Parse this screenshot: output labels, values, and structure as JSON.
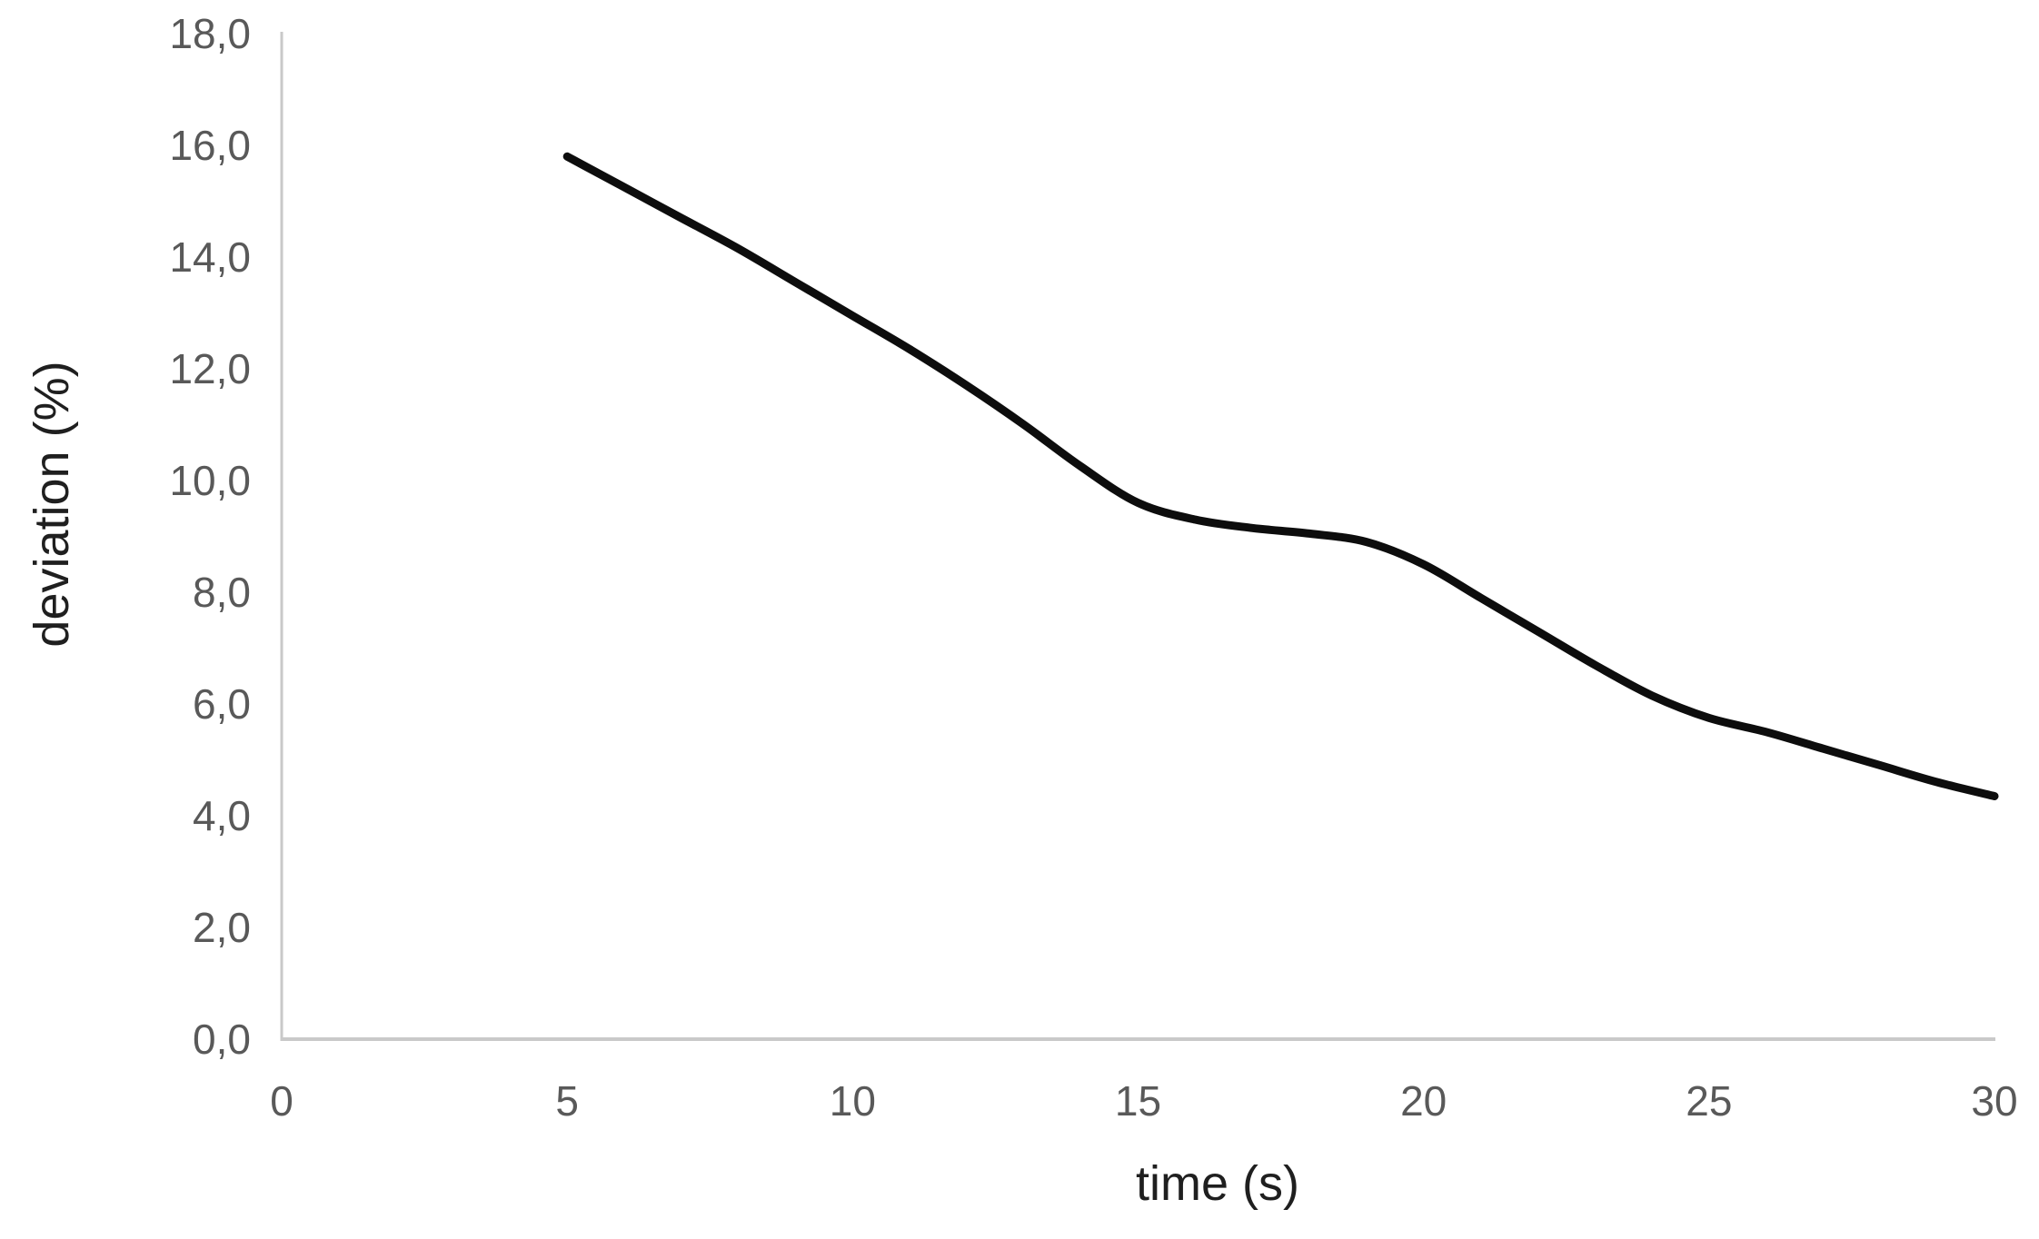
{
  "chart_data": {
    "type": "line",
    "title": "",
    "xlabel": "time (s)",
    "ylabel": "deviation (%)",
    "xlim": [
      0,
      30
    ],
    "ylim": [
      0,
      18
    ],
    "x_tick_values": [
      0,
      5,
      10,
      15,
      20,
      25,
      30
    ],
    "x_tick_labels": [
      "0",
      "5",
      "10",
      "15",
      "20",
      "25",
      "30"
    ],
    "y_tick_values": [
      0,
      2,
      4,
      6,
      8,
      10,
      12,
      14,
      16,
      18
    ],
    "y_tick_labels": [
      "0,0",
      "2,0",
      "4,0",
      "6,0",
      "8,0",
      "10,0",
      "12,0",
      "14,0",
      "16,0",
      "18,0"
    ],
    "grid": false,
    "legend": null,
    "decimal_separator": ",",
    "colors": {
      "series": "#0d0d0d",
      "axis_line": "#c9c9c9",
      "tick_label": "#595959",
      "axis_title": "#1f1f1f",
      "background": "#ffffff"
    },
    "series": [
      {
        "name": "deviation",
        "x": [
          5,
          6,
          7,
          8,
          9,
          10,
          11,
          12,
          13,
          14,
          15,
          16,
          17,
          18,
          19,
          20,
          21,
          22,
          23,
          24,
          25,
          26,
          27,
          28,
          29,
          30
        ],
        "y": [
          15.8,
          15.25,
          14.7,
          14.15,
          13.55,
          12.95,
          12.35,
          11.7,
          11.0,
          10.25,
          9.6,
          9.3,
          9.15,
          9.05,
          8.9,
          8.5,
          7.9,
          7.3,
          6.7,
          6.15,
          5.75,
          5.5,
          5.2,
          4.9,
          4.6,
          4.35
        ]
      }
    ]
  }
}
